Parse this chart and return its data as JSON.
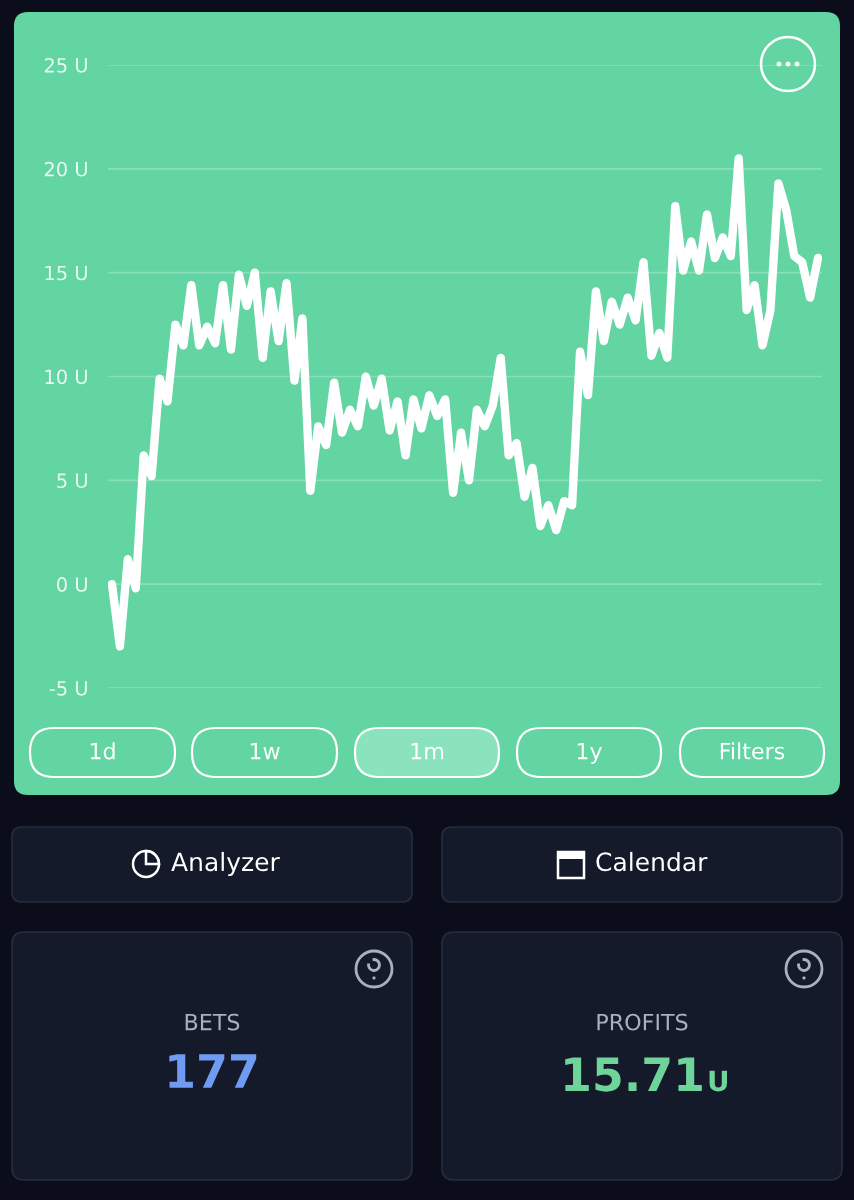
{
  "chart_data": {
    "type": "line",
    "categories": [
      null,
      null,
      null,
      null,
      null,
      null,
      null,
      null,
      null,
      null,
      null,
      null,
      null,
      null,
      null,
      null,
      null,
      null,
      null,
      null,
      null,
      null,
      null,
      null,
      null,
      null,
      null,
      null,
      null,
      null,
      null,
      null,
      null,
      null,
      null,
      null,
      null,
      null,
      null,
      null,
      null,
      null,
      null,
      null,
      null,
      null,
      null,
      null,
      null,
      null,
      null,
      null,
      null,
      null,
      null,
      null,
      null,
      null,
      null,
      null,
      null,
      null,
      null,
      null,
      null,
      null,
      null,
      null,
      null,
      null,
      null,
      null,
      null,
      null,
      null,
      null,
      null,
      null,
      null,
      null,
      null,
      null,
      null,
      null,
      null,
      null,
      null,
      null,
      null,
      null
    ],
    "series": [
      {
        "color": "#ffffff",
        "values": [
          0,
          -3.0,
          1.2,
          -0.2,
          6.2,
          5.2,
          9.9,
          8.8,
          12.5,
          11.5,
          14.4,
          11.5,
          12.4,
          11.6,
          14.4,
          11.3,
          14.9,
          13.4,
          15.0,
          10.9,
          14.1,
          11.7,
          14.5,
          9.8,
          12.8,
          4.5,
          7.6,
          6.7,
          9.7,
          7.3,
          8.4,
          7.6,
          10.0,
          8.6,
          9.9,
          7.4,
          8.8,
          6.2,
          8.9,
          7.5,
          9.1,
          8.1,
          8.9,
          4.4,
          7.3,
          5.0,
          8.4,
          7.6,
          8.6,
          10.9,
          6.2,
          6.8,
          4.2,
          5.6,
          2.8,
          3.8,
          2.6,
          4.0,
          3.8,
          11.2,
          9.1,
          14.1,
          11.7,
          13.6,
          12.5,
          13.8,
          12.7,
          15.5,
          11.0,
          12.1,
          10.9,
          18.2,
          15.1,
          16.5,
          15.1,
          17.8,
          15.7,
          16.7,
          15.8,
          20.5,
          13.2,
          14.4,
          11.5,
          13.2,
          19.3,
          18.0,
          15.8,
          15.5,
          13.8,
          15.71
        ]
      }
    ],
    "ylim": [
      -5,
      25
    ],
    "yticks": [
      {
        "value": -5,
        "label": "-5 U"
      },
      {
        "value": 0,
        "label": "0 U"
      },
      {
        "value": 5,
        "label": "5 U"
      },
      {
        "value": 10,
        "label": "10 U"
      },
      {
        "value": 15,
        "label": "15 U"
      },
      {
        "value": 20,
        "label": "20 U"
      },
      {
        "value": 25,
        "label": "25 U"
      }
    ],
    "grid": "y",
    "annotations": [
      "1d",
      "1w",
      "1m",
      "1y",
      "Filters",
      "Analyzer",
      "Calendar",
      "BETS",
      "177",
      "PROFITS",
      "15.71U"
    ]
  }
}
